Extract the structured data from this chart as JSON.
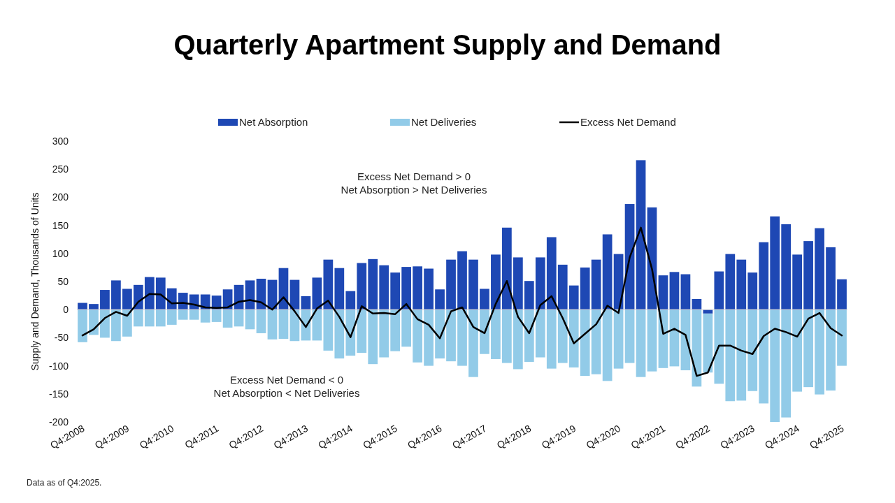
{
  "chart_data": {
    "type": "bar",
    "title": "Quarterly Apartment Supply and Demand",
    "ylabel": "Supply and Demand, Thousands of Units",
    "categories": [
      "Q4:2008",
      null,
      null,
      null,
      "Q4:2009",
      null,
      null,
      null,
      "Q4:2010",
      null,
      null,
      null,
      "Q4:2011",
      null,
      null,
      null,
      "Q4:2012",
      null,
      null,
      null,
      "Q4:2013",
      null,
      null,
      null,
      "Q4:2014",
      null,
      null,
      null,
      "Q4:2015",
      null,
      null,
      null,
      "Q4:2016",
      null,
      null,
      null,
      "Q4:2017",
      null,
      null,
      null,
      "Q4:2018",
      null,
      null,
      null,
      "Q4:2019",
      null,
      null,
      null,
      "Q4:2020",
      null,
      null,
      null,
      "Q4:2021",
      null,
      null,
      null,
      "Q4:2022",
      null,
      null,
      null,
      "Q4:2023",
      null,
      null,
      null,
      "Q4:2024",
      null,
      null,
      null,
      "Q4:2025"
    ],
    "stacked": true,
    "series": [
      {
        "name": "Net Absorption",
        "color": "#1e48b4",
        "values": [
          12,
          10,
          35,
          52,
          37,
          44,
          58,
          57,
          38,
          30,
          27,
          27,
          25,
          36,
          44,
          52,
          55,
          53,
          74,
          53,
          24,
          57,
          89,
          74,
          33,
          83,
          90,
          79,
          66,
          76,
          77,
          73,
          36,
          89,
          104,
          89,
          37,
          98,
          146,
          93,
          51,
          93,
          129,
          80,
          43,
          75,
          89,
          134,
          99,
          188,
          266,
          182,
          61,
          67,
          63,
          19,
          -7,
          68,
          99,
          89,
          66,
          120,
          166,
          152,
          98,
          122,
          145,
          111,
          54
        ]
      },
      {
        "name": "Net Deliveries",
        "color": "#92cbe8",
        "values": [
          -58,
          -45,
          -50,
          -56,
          -48,
          -30,
          -30,
          -30,
          -27,
          -18,
          -18,
          -23,
          -22,
          -32,
          -30,
          -35,
          -42,
          -53,
          -52,
          -56,
          -55,
          -55,
          -73,
          -87,
          -82,
          -77,
          -97,
          -85,
          -74,
          -66,
          -94,
          -100,
          -87,
          -92,
          -100,
          -120,
          -79,
          -88,
          -95,
          -106,
          -93,
          -85,
          -105,
          -95,
          -103,
          -118,
          -115,
          -127,
          -105,
          -95,
          -120,
          -110,
          -104,
          -101,
          -108,
          -137,
          -105,
          -132,
          -163,
          -162,
          -145,
          -167,
          -200,
          -192,
          -146,
          -138,
          -151,
          -144,
          -100
        ]
      },
      {
        "name": "Excess Net Demand",
        "type": "line",
        "color": "#000000",
        "values": [
          -46,
          -35,
          -15,
          -4,
          -11,
          14,
          28,
          27,
          11,
          12,
          9,
          4,
          3,
          4,
          14,
          17,
          13,
          0,
          22,
          -3,
          -31,
          2,
          16,
          -13,
          -49,
          6,
          -7,
          -6,
          -8,
          10,
          -17,
          -27,
          -51,
          -3,
          4,
          -31,
          -42,
          10,
          51,
          -13,
          -42,
          8,
          24,
          -15,
          -60,
          -43,
          -26,
          7,
          -6,
          93,
          146,
          72,
          -43,
          -34,
          -45,
          -118,
          -112,
          -64,
          -64,
          -73,
          -79,
          -47,
          -34,
          -40,
          -48,
          -16,
          -6,
          -33,
          -46
        ]
      }
    ],
    "ylim": [
      -200,
      300
    ],
    "yticks": [
      -200,
      -150,
      -100,
      -50,
      0,
      50,
      100,
      150,
      200,
      250,
      300
    ],
    "legend": "top",
    "annotations": [
      "Excess Net Demand > 0\nNet Absorption > Net Deliveries",
      "Excess Net Demand < 0\nNet Absorption < Net Deliveries",
      "Data as of Q4:2025."
    ]
  }
}
